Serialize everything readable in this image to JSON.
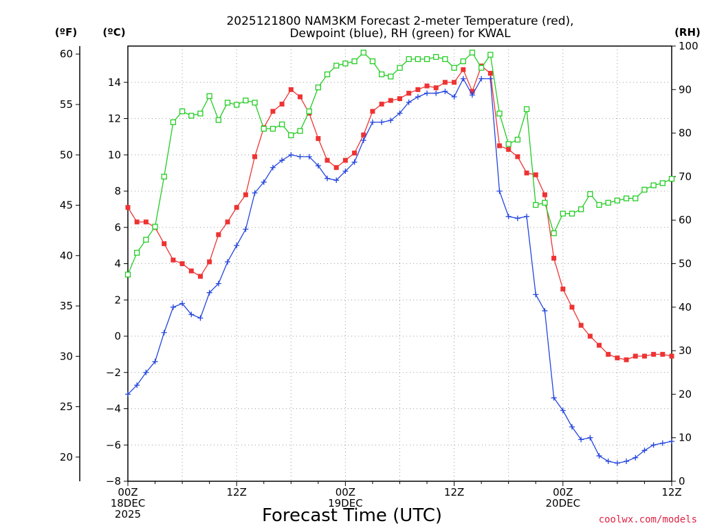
{
  "chart_data": {
    "type": "line",
    "title": [
      "2025121800 NAM3KM Forecast 2-meter Temperature (red),",
      "Dewpoint (blue), RH (green) for KWAL"
    ],
    "xlabel": "Forecast Time (UTC)",
    "credit": "coolwx.com/models",
    "axis_units": {
      "fahrenheit": "(ºF)",
      "celsius": "(ºC)",
      "rh": "(RH)"
    },
    "x_hours_range": [
      0,
      60
    ],
    "x_ticks": [
      {
        "hour": 0,
        "label": [
          "00Z",
          "18DEC",
          "2025"
        ]
      },
      {
        "hour": 12,
        "label": [
          "12Z"
        ]
      },
      {
        "hour": 24,
        "label": [
          "00Z",
          "19DEC"
        ]
      },
      {
        "hour": 36,
        "label": [
          "12Z"
        ]
      },
      {
        "hour": 48,
        "label": [
          "00Z",
          "20DEC"
        ]
      },
      {
        "hour": 60,
        "label": [
          "12Z"
        ]
      }
    ],
    "celsius_range": [
      -8,
      16
    ],
    "celsius_ticks": [
      "14",
      "12",
      "10",
      "8",
      "6",
      "4",
      "2",
      "0",
      "−2",
      "−4",
      "−6",
      "−8"
    ],
    "fahrenheit_ticks": [
      "60",
      "55",
      "50",
      "45",
      "40",
      "35",
      "30",
      "25",
      "20"
    ],
    "rh_range": [
      0,
      100
    ],
    "rh_ticks": [
      "100",
      "90",
      "80",
      "70",
      "60",
      "50",
      "40",
      "30",
      "20",
      "10",
      "0"
    ],
    "series": [
      {
        "name": "Temperature (red)",
        "color": "#ee3333",
        "marker": "filled-square",
        "axis": "celsius",
        "values": [
          7.1,
          6.3,
          6.3,
          6.0,
          5.1,
          4.2,
          4.0,
          3.6,
          3.3,
          4.1,
          5.6,
          6.3,
          7.1,
          7.8,
          9.9,
          11.5,
          12.4,
          12.8,
          13.6,
          13.2,
          12.3,
          10.9,
          9.7,
          9.3,
          9.7,
          10.1,
          11.1,
          12.4,
          12.8,
          13.0,
          13.1,
          13.4,
          13.6,
          13.8,
          13.7,
          14.0,
          14.0,
          14.7,
          13.5,
          14.9,
          14.5,
          10.5,
          10.3,
          9.9,
          9.0,
          8.9,
          7.8,
          4.3,
          2.6,
          1.6,
          0.6,
          0.0,
          -0.5,
          -1.0,
          -1.2,
          -1.3,
          -1.1,
          -1.1,
          -1.0,
          -1.0,
          -1.1
        ]
      },
      {
        "name": "Dewpoint (blue)",
        "color": "#2244dd",
        "marker": "plus",
        "axis": "celsius",
        "values": [
          -3.2,
          -2.7,
          -2.0,
          -1.4,
          0.2,
          1.6,
          1.8,
          1.2,
          1.0,
          2.4,
          2.9,
          4.1,
          5.0,
          5.9,
          7.9,
          8.5,
          9.3,
          9.7,
          10.0,
          9.9,
          9.9,
          9.4,
          8.7,
          8.6,
          9.1,
          9.6,
          10.8,
          11.8,
          11.8,
          11.9,
          12.3,
          12.9,
          13.2,
          13.4,
          13.4,
          13.5,
          13.2,
          14.2,
          13.3,
          14.2,
          14.2,
          8.0,
          6.6,
          6.5,
          6.6,
          2.3,
          1.4,
          -3.4,
          -4.1,
          -5.0,
          -5.7,
          -5.6,
          -6.6,
          -6.9,
          -7.0,
          -6.9,
          -6.7,
          -6.3,
          -6.0,
          -5.9,
          -5.8
        ]
      },
      {
        "name": "RH (green)",
        "color": "#22cc22",
        "marker": "open-square",
        "axis": "rh",
        "values": [
          47.5,
          52.5,
          55.5,
          58.5,
          70.0,
          82.5,
          85.0,
          84.0,
          84.5,
          88.5,
          83.0,
          87.0,
          86.5,
          87.5,
          87.0,
          81.0,
          81.0,
          82.0,
          79.5,
          80.5,
          85.0,
          90.5,
          93.5,
          95.5,
          96.0,
          96.5,
          98.5,
          96.5,
          93.5,
          93.0,
          95.0,
          97.0,
          97.0,
          97.0,
          97.5,
          97.0,
          95.0,
          96.5,
          98.5,
          95.0,
          98.0,
          84.5,
          77.5,
          78.5,
          85.5,
          63.5,
          64.0,
          57.0,
          61.5,
          61.5,
          62.5,
          66.0,
          63.5,
          64.0,
          64.5,
          65.0,
          65.0,
          67.0,
          68.0,
          68.5,
          69.5
        ]
      }
    ]
  }
}
